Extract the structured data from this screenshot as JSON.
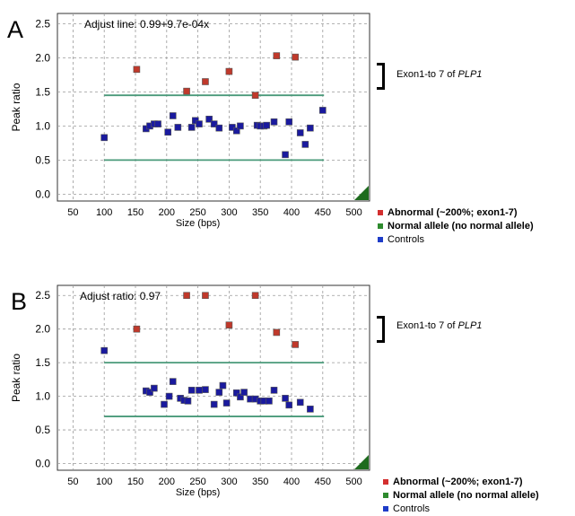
{
  "chart_data": [
    {
      "type": "scatter",
      "panel_letter": "A",
      "annotation": "Adjust line: 0.99+9.7e-04x",
      "xlabel": "Size (bps)",
      "ylabel": "Peak ratio",
      "xlim": [
        25,
        525
      ],
      "ylim": [
        -0.1,
        2.65
      ],
      "xticks": [
        50,
        100,
        150,
        200,
        250,
        300,
        350,
        400,
        450,
        500
      ],
      "yticks": [
        0.0,
        0.5,
        1.0,
        1.5,
        2.0,
        2.5
      ],
      "tick_labels_y": [
        "0.0",
        "0.5",
        "1.0",
        "1.5",
        "2.0",
        "2.5"
      ],
      "grid": true,
      "threshold_lines": [
        1.45,
        0.5
      ],
      "series": [
        {
          "name": "Abnormal (~200%; exon1-7)",
          "color": "#c0392b",
          "points": [
            [
              152,
              1.83
            ],
            [
              232,
              1.51
            ],
            [
              262,
              1.65
            ],
            [
              300,
              1.8
            ],
            [
              342,
              1.45
            ],
            [
              376,
              2.03
            ],
            [
              406,
              2.01
            ]
          ]
        },
        {
          "name": "Controls",
          "color": "#1a1a9e",
          "points": [
            [
              100,
              0.83
            ],
            [
              167,
              0.96
            ],
            [
              173,
              1.0
            ],
            [
              180,
              1.03
            ],
            [
              186,
              1.03
            ],
            [
              202,
              0.91
            ],
            [
              210,
              1.15
            ],
            [
              218,
              0.98
            ],
            [
              240,
              0.98
            ],
            [
              246,
              1.08
            ],
            [
              252,
              1.03
            ],
            [
              268,
              1.1
            ],
            [
              276,
              1.03
            ],
            [
              284,
              0.97
            ],
            [
              305,
              0.98
            ],
            [
              312,
              0.93
            ],
            [
              318,
              1.0
            ],
            [
              345,
              1.01
            ],
            [
              350,
              1.0
            ],
            [
              356,
              1.0
            ],
            [
              360,
              1.01
            ],
            [
              372,
              1.06
            ],
            [
              390,
              0.58
            ],
            [
              396,
              1.06
            ],
            [
              414,
              0.9
            ],
            [
              422,
              0.73
            ],
            [
              430,
              0.97
            ],
            [
              450,
              1.23
            ]
          ]
        }
      ]
    },
    {
      "type": "scatter",
      "panel_letter": "B",
      "annotation": "Adjust ratio: 0.97",
      "xlabel": "Size (bps)",
      "ylabel": "Peak ratio",
      "xlim": [
        25,
        525
      ],
      "ylim": [
        -0.1,
        2.65
      ],
      "xticks": [
        50,
        100,
        150,
        200,
        250,
        300,
        350,
        400,
        450,
        500
      ],
      "yticks": [
        0.0,
        0.5,
        1.0,
        1.5,
        2.0,
        2.5
      ],
      "tick_labels_y": [
        "0.0",
        "0.5",
        "1.0",
        "1.5",
        "2.0",
        "2.5"
      ],
      "grid": true,
      "threshold_lines": [
        1.5,
        0.7
      ],
      "series": [
        {
          "name": "Abnormal (~200%; exon1-7)",
          "color": "#c0392b",
          "points": [
            [
              152,
              2.0
            ],
            [
              232,
              2.5
            ],
            [
              262,
              2.5
            ],
            [
              300,
              2.06
            ],
            [
              342,
              2.5
            ],
            [
              376,
              1.95
            ],
            [
              406,
              1.77
            ]
          ]
        },
        {
          "name": "Controls",
          "color": "#1a1a9e",
          "points": [
            [
              100,
              1.68
            ],
            [
              167,
              1.08
            ],
            [
              173,
              1.06
            ],
            [
              180,
              1.12
            ],
            [
              196,
              0.88
            ],
            [
              204,
              1.0
            ],
            [
              210,
              1.22
            ],
            [
              222,
              0.97
            ],
            [
              228,
              0.94
            ],
            [
              234,
              0.93
            ],
            [
              240,
              1.09
            ],
            [
              252,
              1.09
            ],
            [
              262,
              1.1
            ],
            [
              276,
              0.88
            ],
            [
              284,
              1.06
            ],
            [
              290,
              1.16
            ],
            [
              296,
              0.9
            ],
            [
              312,
              1.05
            ],
            [
              318,
              0.99
            ],
            [
              324,
              1.06
            ],
            [
              334,
              0.96
            ],
            [
              342,
              0.96
            ],
            [
              350,
              0.93
            ],
            [
              356,
              0.93
            ],
            [
              364,
              0.93
            ],
            [
              372,
              1.09
            ],
            [
              390,
              0.97
            ],
            [
              396,
              0.87
            ],
            [
              414,
              0.91
            ],
            [
              430,
              0.81
            ]
          ]
        }
      ]
    }
  ],
  "side_notes": [
    {
      "text": "Exon1-to 7 of ",
      "gene": "PLP1"
    },
    {
      "text": "Exon1-to 7 of ",
      "gene": "PLP1"
    }
  ],
  "legends": [
    {
      "items": [
        {
          "label": "Abnormal (~200%; exon1-7)",
          "color": "#d32f2f",
          "bold": true
        },
        {
          "label": "Normal allele (no normal allele)",
          "color": "#2e8b2e",
          "bold": true
        },
        {
          "label": "Controls",
          "color": "#1e3cc8",
          "bold": false
        }
      ]
    },
    {
      "items": [
        {
          "label": "Abnormal (~200%; exon1-7)",
          "color": "#d32f2f",
          "bold": true
        },
        {
          "label": "Normal allele (no normal allele)",
          "color": "#2e8b2e",
          "bold": true
        },
        {
          "label": "Controls",
          "color": "#1e3cc8",
          "bold": false
        }
      ]
    }
  ],
  "colors": {
    "threshold_line": "#4a9a7a",
    "grid": "#9a9a9a",
    "corner_mark": "#1e6b1e"
  }
}
